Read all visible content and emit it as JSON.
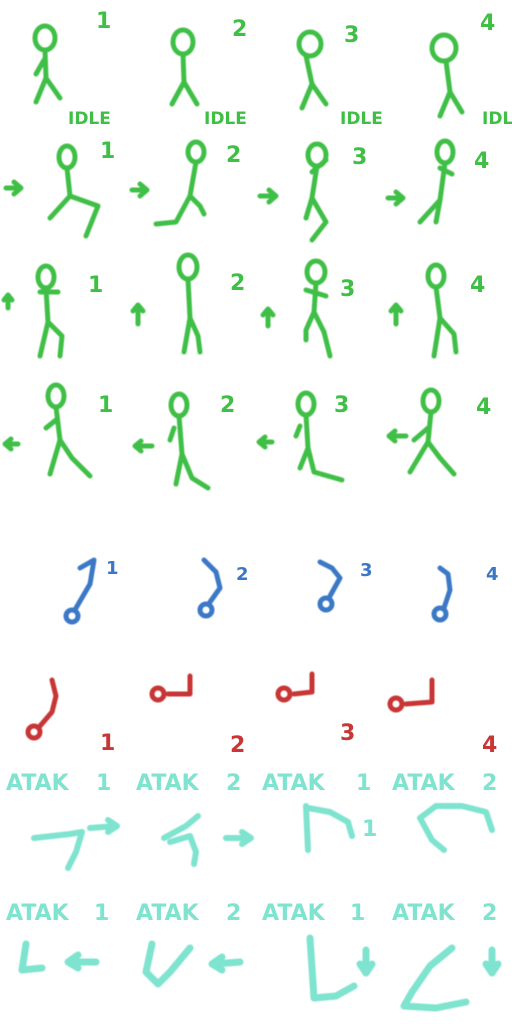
{
  "colors": {
    "green": "#3fbf46",
    "blue": "#3a78c6",
    "red": "#c83636",
    "aqua": "#7ee3cf"
  },
  "rows": {
    "idle": {
      "frames": [
        "1",
        "2",
        "3",
        "4"
      ],
      "tags": [
        "IDLE",
        "IDLE",
        "IDLE",
        "IDLE"
      ]
    },
    "walk_right": {
      "frames": [
        "1",
        "2",
        "3",
        "4"
      ],
      "arrow": "right-arrow-icon"
    },
    "walk_up": {
      "frames": [
        "1",
        "2",
        "3",
        "4"
      ],
      "arrow": "up-arrow-icon"
    },
    "walk_left": {
      "frames": [
        "1",
        "2",
        "3",
        "4"
      ],
      "arrow": "left-arrow-icon"
    },
    "blue_hook": {
      "frames": [
        "1",
        "2",
        "3",
        "4"
      ]
    },
    "red_hook": {
      "frames": [
        "1",
        "2",
        "3",
        "4"
      ]
    },
    "attack_right": {
      "labels": [
        "ATAK",
        "ATAK",
        "ATAK",
        "ATAK"
      ],
      "frames": [
        "1",
        "2",
        "1",
        "2"
      ]
    },
    "attack_left": {
      "labels": [
        "ATAK",
        "ATAK",
        "ATAK",
        "ATAK"
      ],
      "frames": [
        "1",
        "2",
        "1",
        "2"
      ]
    }
  }
}
